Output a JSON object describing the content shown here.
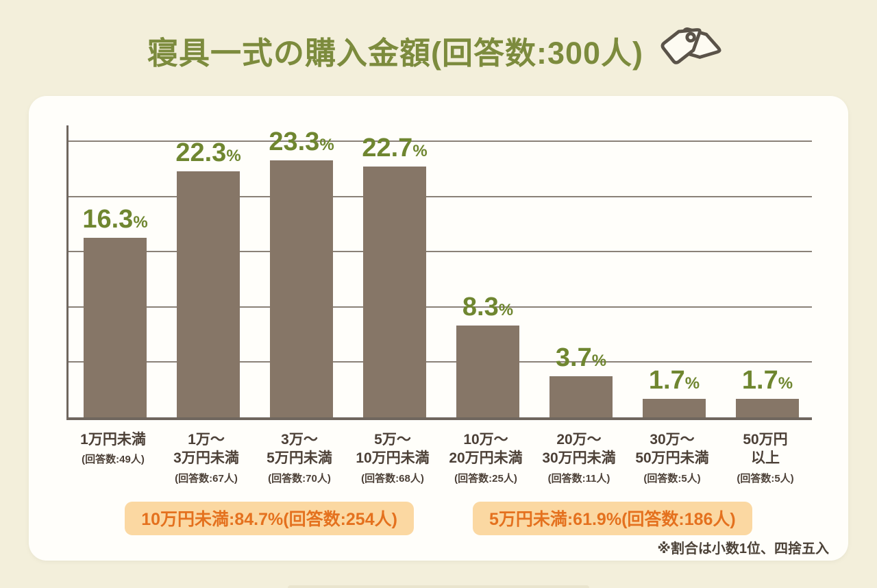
{
  "title": {
    "text": "寝具一式の購入金額(回答数:300人)"
  },
  "icon": {
    "name": "price-tags-icon"
  },
  "chart_data": {
    "type": "bar",
    "title": "寝具一式の購入金額(回答数:300人)",
    "total_respondents": 300,
    "categories": [
      "1万円未満",
      "1万〜3万円未満",
      "3万〜5万円未満",
      "5万〜10万円未満",
      "10万〜20万円未満",
      "20万〜30万円未満",
      "30万〜50万円未満",
      "50万円以上"
    ],
    "category_lines": [
      [
        "1万円未満"
      ],
      [
        "1万〜",
        "3万円未満"
      ],
      [
        "3万〜",
        "5万円未満"
      ],
      [
        "5万〜",
        "10万円未満"
      ],
      [
        "10万〜",
        "20万円未満"
      ],
      [
        "20万〜",
        "30万円未満"
      ],
      [
        "30万〜",
        "50万円未満"
      ],
      [
        "50万円",
        "以上"
      ]
    ],
    "values": [
      16.3,
      22.3,
      23.3,
      22.7,
      8.3,
      3.7,
      1.7,
      1.7
    ],
    "value_labels": [
      "16.3",
      "22.3",
      "23.3",
      "22.7",
      "8.3",
      "3.7",
      "1.7",
      "1.7"
    ],
    "unit": "%",
    "counts": [
      49,
      67,
      70,
      68,
      25,
      11,
      5,
      5
    ],
    "count_labels": [
      "(回答数:49人)",
      "(回答数:67人)",
      "(回答数:70人)",
      "(回答数:68人)",
      "(回答数:25人)",
      "(回答数:11人)",
      "(回答数:5人)",
      "(回答数:5人)"
    ],
    "ylim": [
      0,
      26.7
    ],
    "gridlines": [
      5,
      10,
      15,
      20,
      25
    ],
    "grid_on": true,
    "legend": "none",
    "bar_color": "#867667",
    "value_label_color": "#6f8630",
    "axis_color": "#6f665e",
    "grid_color": "#8a8178"
  },
  "summary_badges": [
    {
      "text": "10万円未満:84.7%(回答数:254人)"
    },
    {
      "text": "5万円未満:61.9%(回答数:186人)"
    }
  ],
  "footnote": "※割合は小数1位、四捨五入",
  "colors": {
    "page_background": "#f3efdb",
    "panel_background": "#fffefa",
    "title_green": "#7c8b3d",
    "value_green": "#6f8630",
    "bar_brown": "#867667",
    "label_brown": "#4c4037",
    "badge_background": "#fbd8a2",
    "badge_text": "#e4711e"
  }
}
